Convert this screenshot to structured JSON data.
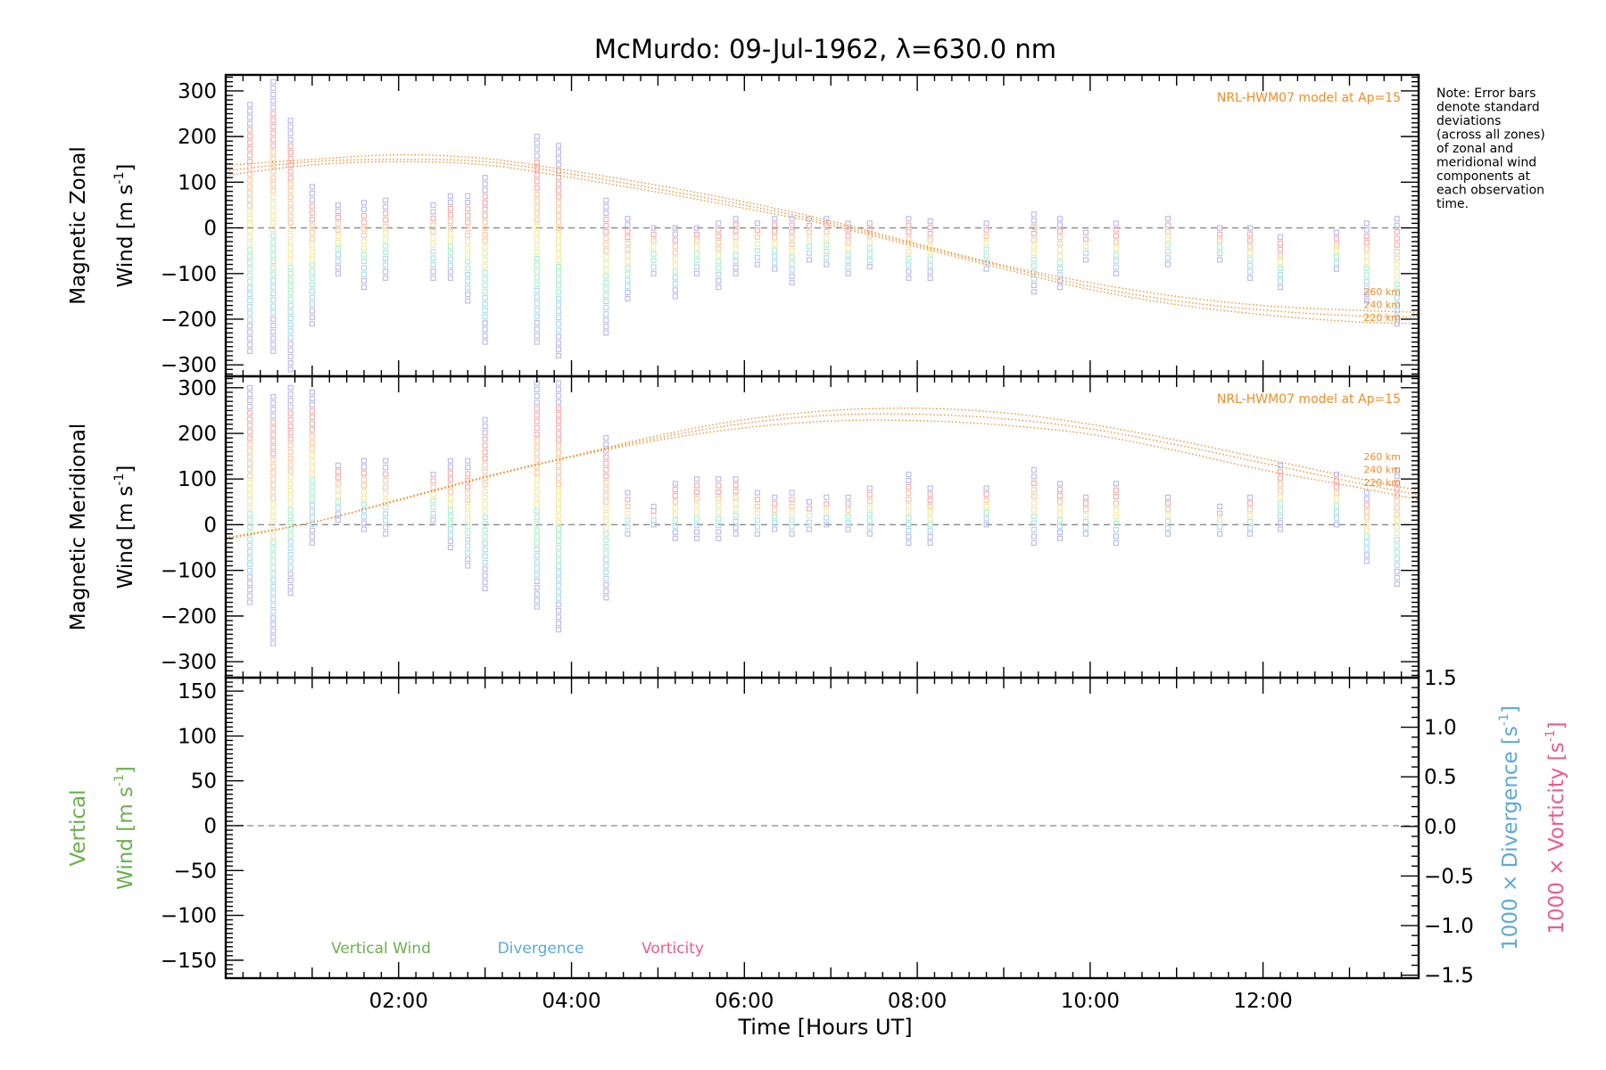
{
  "chart_data": {
    "type": "scatter",
    "title": "McMurdo: 09-Jul-1962, λ=630.0 nm",
    "xlabel": "Time [Hours UT]",
    "x_ticks": [
      "02:00",
      "04:00",
      "06:00",
      "08:00",
      "10:00",
      "12:00"
    ],
    "x_tick_hours": [
      2,
      4,
      6,
      8,
      10,
      12
    ],
    "xlim_hours": [
      0,
      13.8
    ],
    "note": [
      "Note: Error bars",
      "denote standard",
      "deviations",
      "(across all zones)",
      "of zonal and",
      "meridional wind",
      "components at",
      "each observation",
      "time."
    ],
    "colors": {
      "model": "#f28c28",
      "vertical": "#6ab04c",
      "divergence": "#5aaad8",
      "vorticity": "#ee5a8c",
      "zero_line": "#888888",
      "observations": [
        "#b8b8ee",
        "#a8d8f0",
        "#a8eec8",
        "#f0e8a0",
        "#f8c8a0",
        "#f8a8a8"
      ]
    },
    "panels": [
      {
        "id": "zonal",
        "ylabel_line1": "Magnetic Zonal",
        "ylabel_line2": "Wind [m s",
        "ylabel_sup": "-1",
        "ylabel_close": "]",
        "ylim": [
          -325,
          335
        ],
        "yticks": [
          -300,
          -200,
          -100,
          0,
          100,
          200,
          300
        ],
        "ytick_labels": [
          "−300",
          "−200",
          "−100",
          "0",
          "100",
          "200",
          "300"
        ],
        "model_label": "NRL-HWM07 model at Ap=15",
        "altitudes": [
          "260 km",
          "240 km",
          "220 km"
        ],
        "model_curves": [
          {
            "label": "260 km",
            "x": [
              0,
              1,
              2,
              3,
              4,
              5,
              6,
              7,
              8,
              9,
              10,
              11,
              12,
              13,
              13.8
            ],
            "y": [
              137,
              150,
              160,
              152,
              125,
              93,
              57,
              15,
              -35,
              -82,
              -120,
              -150,
              -170,
              -180,
              -185
            ]
          },
          {
            "label": "240 km",
            "x": [
              0,
              1,
              2,
              3,
              4,
              5,
              6,
              7,
              8,
              9,
              10,
              11,
              12,
              13,
              13.8
            ],
            "y": [
              125,
              145,
              150,
              145,
              118,
              85,
              50,
              10,
              -38,
              -85,
              -128,
              -160,
              -180,
              -192,
              -195
            ]
          },
          {
            "label": "220 km",
            "x": [
              0,
              1,
              2,
              3,
              4,
              5,
              6,
              7,
              8,
              9,
              10,
              11,
              12,
              13,
              13.8
            ],
            "y": [
              115,
              138,
              145,
              138,
              110,
              78,
              43,
              5,
              -42,
              -90,
              -135,
              -168,
              -190,
              -205,
              -210
            ]
          }
        ],
        "observations": [
          {
            "t": 0.28,
            "lo": -270,
            "hi": 270
          },
          {
            "t": 0.55,
            "lo": -270,
            "hi": 320
          },
          {
            "t": 0.75,
            "lo": -310,
            "hi": 235
          },
          {
            "t": 1.0,
            "lo": -210,
            "hi": 90
          },
          {
            "t": 1.3,
            "lo": -100,
            "hi": 50
          },
          {
            "t": 1.6,
            "lo": -130,
            "hi": 55
          },
          {
            "t": 1.85,
            "lo": -110,
            "hi": 60
          },
          {
            "t": 2.4,
            "lo": -110,
            "hi": 50
          },
          {
            "t": 2.6,
            "lo": -110,
            "hi": 70
          },
          {
            "t": 2.8,
            "lo": -160,
            "hi": 70
          },
          {
            "t": 3.0,
            "lo": -250,
            "hi": 110
          },
          {
            "t": 3.6,
            "lo": -250,
            "hi": 200
          },
          {
            "t": 3.85,
            "lo": -280,
            "hi": 180
          },
          {
            "t": 4.4,
            "lo": -230,
            "hi": 60
          },
          {
            "t": 4.65,
            "lo": -155,
            "hi": 20
          },
          {
            "t": 4.95,
            "lo": -100,
            "hi": 0
          },
          {
            "t": 5.2,
            "lo": -150,
            "hi": 0
          },
          {
            "t": 5.45,
            "lo": -100,
            "hi": 0
          },
          {
            "t": 5.7,
            "lo": -130,
            "hi": 10
          },
          {
            "t": 5.9,
            "lo": -100,
            "hi": 20
          },
          {
            "t": 6.15,
            "lo": -80,
            "hi": 10
          },
          {
            "t": 6.35,
            "lo": -90,
            "hi": 20
          },
          {
            "t": 6.55,
            "lo": -120,
            "hi": 20
          },
          {
            "t": 6.75,
            "lo": -70,
            "hi": 20
          },
          {
            "t": 6.95,
            "lo": -80,
            "hi": 20
          },
          {
            "t": 7.2,
            "lo": -100,
            "hi": 10
          },
          {
            "t": 7.45,
            "lo": -85,
            "hi": 10
          },
          {
            "t": 7.9,
            "lo": -110,
            "hi": 20
          },
          {
            "t": 8.15,
            "lo": -110,
            "hi": 15
          },
          {
            "t": 8.8,
            "lo": -90,
            "hi": 10
          },
          {
            "t": 9.35,
            "lo": -140,
            "hi": 30
          },
          {
            "t": 9.65,
            "lo": -130,
            "hi": 20
          },
          {
            "t": 9.95,
            "lo": -70,
            "hi": -10
          },
          {
            "t": 10.3,
            "lo": -100,
            "hi": 10
          },
          {
            "t": 10.9,
            "lo": -80,
            "hi": 20
          },
          {
            "t": 11.5,
            "lo": -70,
            "hi": 0
          },
          {
            "t": 11.85,
            "lo": -110,
            "hi": 0
          },
          {
            "t": 12.2,
            "lo": -130,
            "hi": -20
          },
          {
            "t": 12.85,
            "lo": -90,
            "hi": -10
          },
          {
            "t": 13.2,
            "lo": -160,
            "hi": 10
          },
          {
            "t": 13.55,
            "lo": -210,
            "hi": 20
          }
        ]
      },
      {
        "id": "meridional",
        "ylabel_line1": "Magnetic Meridional",
        "ylabel_line2": "Wind [m s",
        "ylabel_sup": "-1",
        "ylabel_close": "]",
        "ylim": [
          -335,
          325
        ],
        "yticks": [
          -300,
          -200,
          -100,
          0,
          100,
          200,
          300
        ],
        "ytick_labels": [
          "−300",
          "−200",
          "−100",
          "0",
          "100",
          "200",
          "300"
        ],
        "model_label": "NRL-HWM07 model at Ap=15",
        "altitudes": [
          "260 km",
          "240 km",
          "220 km"
        ],
        "model_curves": [
          {
            "label": "260 km",
            "x": [
              0,
              1,
              2,
              3,
              4,
              5,
              6,
              7,
              8,
              9,
              10,
              11,
              12,
              13,
              13.8
            ],
            "y": [
              -28,
              5,
              55,
              105,
              150,
              195,
              230,
              250,
              255,
              245,
              220,
              185,
              145,
              105,
              75
            ]
          },
          {
            "label": "240 km",
            "x": [
              0,
              1,
              2,
              3,
              4,
              5,
              6,
              7,
              8,
              9,
              10,
              11,
              12,
              13,
              13.8
            ],
            "y": [
              -30,
              5,
              55,
              105,
              150,
              190,
              222,
              240,
              242,
              232,
              210,
              175,
              135,
              95,
              65
            ]
          },
          {
            "label": "220 km",
            "x": [
              0,
              1,
              2,
              3,
              4,
              5,
              6,
              7,
              8,
              9,
              10,
              11,
              12,
              13,
              13.8
            ],
            "y": [
              -32,
              5,
              53,
              103,
              148,
              185,
              212,
              227,
              228,
              218,
              198,
              162,
              120,
              85,
              55
            ]
          }
        ],
        "observations": [
          {
            "t": 0.28,
            "lo": -170,
            "hi": 300
          },
          {
            "t": 0.55,
            "lo": -260,
            "hi": 280
          },
          {
            "t": 0.75,
            "lo": -150,
            "hi": 300
          },
          {
            "t": 1.0,
            "lo": -40,
            "hi": 290
          },
          {
            "t": 1.3,
            "lo": 10,
            "hi": 130
          },
          {
            "t": 1.6,
            "lo": -10,
            "hi": 140
          },
          {
            "t": 1.85,
            "lo": -20,
            "hi": 140
          },
          {
            "t": 2.4,
            "lo": 10,
            "hi": 110
          },
          {
            "t": 2.6,
            "lo": -50,
            "hi": 140
          },
          {
            "t": 2.8,
            "lo": -90,
            "hi": 140
          },
          {
            "t": 3.0,
            "lo": -140,
            "hi": 230
          },
          {
            "t": 3.6,
            "lo": -180,
            "hi": 310
          },
          {
            "t": 3.85,
            "lo": -230,
            "hi": 310
          },
          {
            "t": 4.4,
            "lo": -160,
            "hi": 190
          },
          {
            "t": 4.65,
            "lo": -20,
            "hi": 70
          },
          {
            "t": 4.95,
            "lo": 0,
            "hi": 40
          },
          {
            "t": 5.2,
            "lo": -30,
            "hi": 90
          },
          {
            "t": 5.45,
            "lo": -30,
            "hi": 100
          },
          {
            "t": 5.7,
            "lo": -30,
            "hi": 100
          },
          {
            "t": 5.9,
            "lo": -20,
            "hi": 100
          },
          {
            "t": 6.15,
            "lo": -20,
            "hi": 70
          },
          {
            "t": 6.35,
            "lo": -10,
            "hi": 60
          },
          {
            "t": 6.55,
            "lo": -20,
            "hi": 70
          },
          {
            "t": 6.75,
            "lo": -10,
            "hi": 50
          },
          {
            "t": 6.95,
            "lo": 0,
            "hi": 60
          },
          {
            "t": 7.2,
            "lo": -10,
            "hi": 60
          },
          {
            "t": 7.45,
            "lo": -20,
            "hi": 80
          },
          {
            "t": 7.9,
            "lo": -40,
            "hi": 110
          },
          {
            "t": 8.15,
            "lo": -40,
            "hi": 80
          },
          {
            "t": 8.8,
            "lo": 0,
            "hi": 80
          },
          {
            "t": 9.35,
            "lo": -40,
            "hi": 120
          },
          {
            "t": 9.65,
            "lo": -30,
            "hi": 90
          },
          {
            "t": 9.95,
            "lo": -20,
            "hi": 60
          },
          {
            "t": 10.3,
            "lo": -40,
            "hi": 90
          },
          {
            "t": 10.9,
            "lo": -20,
            "hi": 60
          },
          {
            "t": 11.5,
            "lo": -20,
            "hi": 40
          },
          {
            "t": 11.85,
            "lo": -20,
            "hi": 60
          },
          {
            "t": 12.2,
            "lo": -10,
            "hi": 130
          },
          {
            "t": 12.85,
            "lo": 0,
            "hi": 110
          },
          {
            "t": 13.2,
            "lo": -80,
            "hi": 70
          },
          {
            "t": 13.55,
            "lo": -130,
            "hi": 120
          }
        ]
      },
      {
        "id": "vertical",
        "ylabel_line1": "Vertical",
        "ylabel_line2": "Wind [m s",
        "ylabel_sup": "-1",
        "ylabel_close": "]",
        "ylim": [
          -170,
          165
        ],
        "yticks": [
          -150,
          -100,
          -50,
          0,
          50,
          100,
          150
        ],
        "ytick_labels": [
          "−150",
          "−100",
          "−50",
          "0",
          "50",
          "100",
          "150"
        ],
        "right_axis": {
          "ylim": [
            -1.53,
            1.5
          ],
          "yticks": [
            -1.5,
            -1.0,
            -0.5,
            0.0,
            0.5,
            1.0,
            1.5
          ],
          "ytick_labels": [
            "−1.5",
            "−1.0",
            "−0.5",
            "0.0",
            "0.5",
            "1.0",
            "1.5"
          ],
          "label_divergence": "1000 × Divergence [s",
          "label_vorticity": "1000 × Vorticity [s",
          "sup": "-1",
          "close": "]"
        },
        "legend": [
          "Vertical Wind",
          "Divergence",
          "Vorticity"
        ]
      }
    ]
  }
}
